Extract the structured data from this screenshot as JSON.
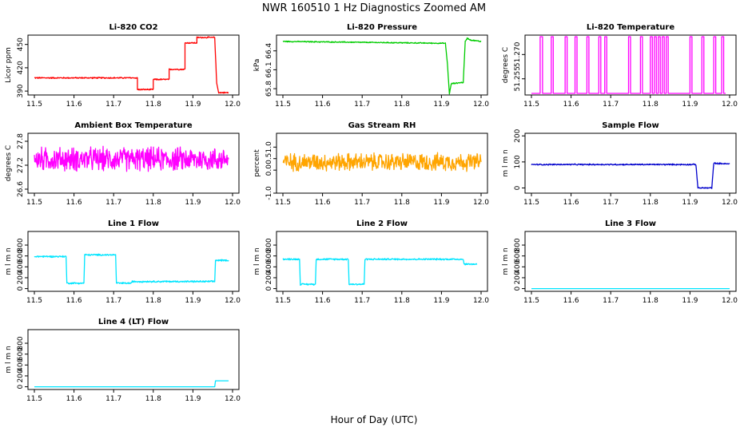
{
  "figure": {
    "title": "NWR  160510  1 Hz Diagnostics Zoomed AM",
    "xlabel": "Hour of Day (UTC)",
    "xlim": [
      11.5,
      12.0
    ],
    "xticks": [
      "11.5",
      "11.6",
      "11.7",
      "11.8",
      "11.9",
      "12.0"
    ]
  },
  "chart_data": [
    {
      "type": "line",
      "title": "Li-820 CO2",
      "ylabel": "Licor ppm",
      "color": "#ff0000",
      "ylim": [
        385,
        462
      ],
      "yticks": [
        390,
        420,
        450
      ],
      "noise": 1,
      "series": [
        {
          "name": "CO2",
          "x": [
            11.5,
            11.7,
            11.7,
            11.76,
            11.76,
            11.8,
            11.8,
            11.84,
            11.84,
            11.88,
            11.88,
            11.91,
            11.91,
            11.955,
            11.96,
            11.965,
            11.99
          ],
          "y": [
            407,
            407,
            407,
            407,
            392,
            392,
            405,
            405,
            418,
            418,
            452,
            452,
            459,
            459,
            400,
            388,
            388
          ]
        }
      ]
    },
    {
      "type": "line",
      "title": "Li-820 Pressure",
      "ylabel": "kPa",
      "color": "#00cc00",
      "ylim": [
        65.7,
        66.65
      ],
      "yticks": [
        65.8,
        66.1,
        66.4
      ],
      "noise": 0.01,
      "series": [
        {
          "name": "Pressure",
          "x": [
            11.5,
            11.91,
            11.915,
            11.92,
            11.925,
            11.955,
            11.96,
            11.965,
            11.975,
            12.0
          ],
          "y": [
            66.55,
            66.52,
            66.2,
            65.72,
            65.88,
            65.9,
            66.55,
            66.6,
            66.57,
            66.55
          ]
        }
      ]
    },
    {
      "type": "line",
      "title": "Li-820 Temperature",
      "ylabel": "degrees C",
      "color": "#ff00ff",
      "ylim": [
        51.245,
        51.282
      ],
      "yticks": [
        51.255,
        51.27
      ],
      "ytickLabels": [
        "51.255",
        "51.270"
      ],
      "noise": 0,
      "series": [
        {
          "name": "Temperature",
          "x": [
            11.5,
            11.522,
            11.522,
            11.528,
            11.528,
            11.55,
            11.55,
            11.555,
            11.555,
            11.585,
            11.585,
            11.59,
            11.59,
            11.61,
            11.61,
            11.615,
            11.615,
            11.64,
            11.64,
            11.645,
            11.645,
            11.67,
            11.67,
            11.675,
            11.675,
            11.685,
            11.685,
            11.69,
            11.69,
            11.745,
            11.745,
            11.75,
            11.75,
            11.775,
            11.775,
            11.78,
            11.78,
            11.8,
            11.8,
            11.805,
            11.805,
            11.81,
            11.81,
            11.815,
            11.815,
            11.82,
            11.82,
            11.825,
            11.825,
            11.83,
            11.83,
            11.835,
            11.835,
            11.84,
            11.84,
            11.845,
            11.845,
            11.9,
            11.9,
            11.905,
            11.905,
            11.93,
            11.93,
            11.935,
            11.935,
            11.96,
            11.96,
            11.965,
            11.965,
            11.98,
            11.98,
            11.985,
            11.985,
            11.99
          ],
          "y": [
            51.246,
            51.246,
            51.281,
            51.281,
            51.246,
            51.246,
            51.281,
            51.281,
            51.246,
            51.246,
            51.281,
            51.281,
            51.246,
            51.246,
            51.281,
            51.281,
            51.246,
            51.246,
            51.281,
            51.281,
            51.246,
            51.246,
            51.281,
            51.281,
            51.246,
            51.246,
            51.281,
            51.281,
            51.246,
            51.246,
            51.281,
            51.281,
            51.246,
            51.246,
            51.281,
            51.281,
            51.246,
            51.246,
            51.281,
            51.281,
            51.246,
            51.246,
            51.281,
            51.281,
            51.246,
            51.246,
            51.281,
            51.281,
            51.246,
            51.246,
            51.281,
            51.281,
            51.246,
            51.246,
            51.281,
            51.281,
            51.246,
            51.246,
            51.281,
            51.281,
            51.246,
            51.246,
            51.281,
            51.281,
            51.246,
            51.246,
            51.281,
            51.281,
            51.246,
            51.246,
            51.281,
            51.281,
            51.246,
            51.246
          ]
        }
      ]
    },
    {
      "type": "line",
      "title": "Ambient Box Temperature",
      "ylabel": "degrees C",
      "color": "#ff00ff",
      "ylim": [
        26.5,
        28.0
      ],
      "yticks": [
        26.6,
        27.2,
        27.8
      ],
      "noise": 0.35,
      "series": [
        {
          "name": "Box Temperature",
          "x": [
            11.5,
            11.99
          ],
          "y": [
            27.35,
            27.35
          ]
        }
      ]
    },
    {
      "type": "line",
      "title": "Gas Stream RH",
      "ylabel": "percent",
      "color": "#ffa500",
      "ylim": [
        -1.0,
        1.6
      ],
      "yticks": [
        -1,
        0,
        0.5,
        1
      ],
      "ytickLabels": [
        "-1.0",
        "0.0",
        "0.5",
        "1.0"
      ],
      "noise": 0.45,
      "series": [
        {
          "name": "RH",
          "x": [
            11.5,
            12.0
          ],
          "y": [
            0.35,
            0.35
          ]
        }
      ]
    },
    {
      "type": "line",
      "title": "Sample Flow",
      "ylabel": "m l m n",
      "color": "#0000cc",
      "ylim": [
        -20,
        210
      ],
      "yticks": [
        0,
        100,
        200
      ],
      "noise": 3,
      "series": [
        {
          "name": "Sample Flow",
          "x": [
            11.5,
            11.915,
            11.92,
            11.955,
            11.96,
            12.0
          ],
          "y": [
            90,
            90,
            0,
            0,
            95,
            92
          ]
        }
      ]
    },
    {
      "type": "line",
      "title": "Line 1 Flow",
      "ylabel": "m l m n",
      "color": "#00e5ff",
      "ylim": [
        -50,
        1050
      ],
      "yticks": [
        0,
        200,
        400,
        600,
        800
      ],
      "noise": 18,
      "series": [
        {
          "name": "Line 1",
          "x": [
            11.5,
            11.58,
            11.582,
            11.625,
            11.627,
            11.705,
            11.707,
            11.745,
            11.747,
            11.955,
            11.957,
            11.99
          ],
          "y": [
            590,
            590,
            100,
            100,
            620,
            620,
            100,
            100,
            130,
            130,
            520,
            520
          ]
        }
      ]
    },
    {
      "type": "line",
      "title": "Line 2 Flow",
      "ylabel": "m l m n",
      "color": "#00e5ff",
      "ylim": [
        -50,
        1050
      ],
      "yticks": [
        0,
        200,
        400,
        600,
        800
      ],
      "noise": 18,
      "series": [
        {
          "name": "Line 2",
          "x": [
            11.5,
            11.542,
            11.544,
            11.582,
            11.584,
            11.665,
            11.667,
            11.705,
            11.707,
            11.955,
            11.957,
            11.99
          ],
          "y": [
            540,
            540,
            80,
            80,
            540,
            540,
            80,
            80,
            540,
            540,
            450,
            450
          ]
        }
      ]
    },
    {
      "type": "line",
      "title": "Line 3 Flow",
      "ylabel": "m l m n",
      "color": "#00e5ff",
      "ylim": [
        -50,
        1050
      ],
      "yticks": [
        0,
        200,
        400,
        600,
        800
      ],
      "noise": 0,
      "series": [
        {
          "name": "Line 3",
          "x": [
            11.5,
            12.0
          ],
          "y": [
            0,
            0
          ]
        }
      ]
    },
    {
      "type": "line",
      "title": "Line 4 (LT) Flow",
      "ylabel": "m l m n",
      "color": "#00e5ff",
      "ylim": [
        -50,
        1050
      ],
      "yticks": [
        0,
        200,
        400,
        600,
        800
      ],
      "noise": 0,
      "series": [
        {
          "name": "Line 4",
          "x": [
            11.5,
            11.955,
            11.957,
            11.99
          ],
          "y": [
            0,
            0,
            110,
            110
          ]
        }
      ]
    }
  ]
}
